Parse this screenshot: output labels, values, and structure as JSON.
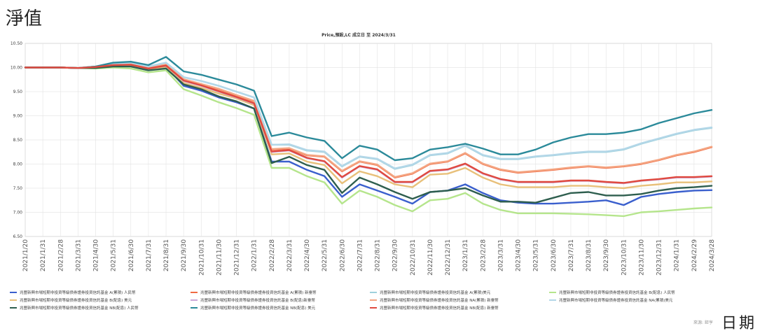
{
  "page": {
    "title": "淨值",
    "x_axis_caption": "日期",
    "source_note": "來源: 鉅亨"
  },
  "chart_data": {
    "type": "line",
    "title": "Price,預設,LC 成立日 至 2024/3/31",
    "xlabel": "",
    "ylabel": "",
    "ylim": [
      6.5,
      10.5
    ],
    "yticks": [
      6.5,
      7.0,
      7.5,
      8.0,
      8.5,
      9.0,
      9.5,
      10.0,
      10.5
    ],
    "ytick_labels": [
      "6.50",
      "7.00",
      "7.50",
      "8.00",
      "8.50",
      "9.00",
      "9.50",
      "10.00",
      "10.50"
    ],
    "grid": true,
    "legend_position": "bottom",
    "categories": [
      "2021/1/20",
      "2021/1/31",
      "2021/2/28",
      "2021/3/31",
      "2021/4/30",
      "2021/5/31",
      "2021/6/30",
      "2021/7/31",
      "2021/8/31",
      "2021/9/30",
      "2021/10/31",
      "2021/11/30",
      "2021/12/31",
      "2022/1/31",
      "2022/2/28",
      "2022/3/31",
      "2022/4/30",
      "2022/5/31",
      "2022/6/30",
      "2022/7/31",
      "2022/8/31",
      "2022/9/30",
      "2022/10/31",
      "2022/11/30",
      "2022/12/31",
      "2023/1/31",
      "2023/2/28",
      "2023/3/31",
      "2023/4/30",
      "2023/5/31",
      "2023/6/30",
      "2023/7/31",
      "2023/8/31",
      "2023/9/30",
      "2023/10/31",
      "2023/11/30",
      "2023/12/31",
      "2024/1/31",
      "2024/2/29",
      "2024/3/28"
    ],
    "series": [
      {
        "name": "兆豐新興市場短期非投資等級債券證券投資信託基金 A(累積) 人民幣",
        "color": "#3a5fcd",
        "values": [
          10.0,
          10.0,
          10.0,
          9.99,
          10.0,
          10.05,
          10.05,
          9.98,
          10.02,
          9.62,
          9.52,
          9.38,
          9.28,
          9.15,
          8.05,
          8.05,
          7.88,
          7.75,
          7.32,
          7.58,
          7.45,
          7.32,
          7.18,
          7.42,
          7.45,
          7.58,
          7.4,
          7.25,
          7.2,
          7.18,
          7.18,
          7.2,
          7.22,
          7.25,
          7.15,
          7.32,
          7.38,
          7.42,
          7.45,
          7.46
        ]
      },
      {
        "name": "兆豐新興市場短期非投資等級債券證券投資信託基金 A(累積) 新臺幣",
        "color": "#f06b43",
        "values": [
          10.0,
          10.0,
          10.0,
          9.99,
          10.02,
          10.06,
          10.08,
          10.0,
          10.06,
          9.75,
          9.65,
          9.55,
          9.42,
          9.3,
          8.3,
          8.32,
          8.18,
          8.15,
          7.85,
          8.05,
          7.98,
          7.72,
          7.8,
          8.0,
          8.05,
          8.22,
          8.0,
          7.88,
          7.82,
          7.85,
          7.88,
          7.92,
          7.95,
          7.92,
          7.95,
          8.0,
          8.08,
          8.18,
          8.25,
          8.35
        ]
      },
      {
        "name": "兆豐新興市場短期非投資等級債券證券投資信託基金 A(累積)美元",
        "color": "#9fd1dc",
        "values": [
          10.0,
          10.0,
          10.0,
          9.99,
          10.02,
          10.07,
          10.1,
          10.02,
          10.1,
          9.8,
          9.72,
          9.62,
          9.5,
          9.38,
          8.4,
          8.4,
          8.28,
          8.25,
          7.95,
          8.15,
          8.1,
          7.9,
          7.98,
          8.18,
          8.22,
          8.38,
          8.18,
          8.1,
          8.1,
          8.15,
          8.18,
          8.22,
          8.25,
          8.25,
          8.3,
          8.42,
          8.52,
          8.62,
          8.7,
          8.75
        ]
      },
      {
        "name": "兆豐新興市場短期非投資等級債券證券投資信託基金 B(配息) 人民幣",
        "color": "#b5e58c",
        "values": [
          10.0,
          10.0,
          10.0,
          9.99,
          9.98,
          10.0,
          9.98,
          9.9,
          9.94,
          9.55,
          9.42,
          9.28,
          9.16,
          9.02,
          7.92,
          7.92,
          7.75,
          7.62,
          7.18,
          7.45,
          7.32,
          7.15,
          7.02,
          7.25,
          7.28,
          7.4,
          7.18,
          7.05,
          6.98,
          6.98,
          6.98,
          6.97,
          6.96,
          6.94,
          6.92,
          7.0,
          7.02,
          7.05,
          7.08,
          7.1
        ]
      },
      {
        "name": "兆豐新興市場短期非投資等級債券證券投資信託基金 B(配息) 美元",
        "color": "#e8c07a",
        "values": [
          10.0,
          10.0,
          10.0,
          9.99,
          10.0,
          10.03,
          10.04,
          9.96,
          10.0,
          9.68,
          9.58,
          9.46,
          9.36,
          9.22,
          8.2,
          8.22,
          8.05,
          7.98,
          7.6,
          7.85,
          7.75,
          7.58,
          7.52,
          7.78,
          7.8,
          7.92,
          7.72,
          7.58,
          7.52,
          7.52,
          7.52,
          7.55,
          7.55,
          7.52,
          7.5,
          7.55,
          7.58,
          7.62,
          7.62,
          7.64
        ]
      },
      {
        "name": "兆豐新興市場短期非投資等級債券證券投資信託基金 B(配息)新臺幣",
        "color": "#cba7d8",
        "values": [
          10.0,
          10.0,
          10.0,
          9.99,
          10.01,
          10.05,
          10.06,
          9.98,
          10.04,
          9.72,
          9.62,
          9.5,
          9.38,
          9.25,
          8.25,
          8.28,
          8.12,
          8.05,
          7.72,
          7.95,
          7.88,
          7.62,
          7.62,
          7.85,
          7.88,
          8.0,
          7.8,
          7.68,
          7.62,
          7.62,
          7.62,
          7.65,
          7.65,
          7.62,
          7.6,
          7.65,
          7.68,
          7.72,
          7.72,
          7.74
        ]
      },
      {
        "name": "兆豐新興市場短期非投資等級債券證券投資信託基金 NA(累積) 新臺幣",
        "color": "#f4a582",
        "values": [
          10.0,
          10.0,
          10.0,
          9.99,
          10.02,
          10.06,
          10.08,
          10.0,
          10.06,
          9.76,
          9.66,
          9.56,
          9.43,
          9.31,
          8.31,
          8.33,
          8.19,
          8.16,
          7.86,
          8.06,
          7.99,
          7.73,
          7.81,
          8.01,
          8.06,
          8.23,
          8.01,
          7.89,
          7.83,
          7.86,
          7.89,
          7.93,
          7.96,
          7.93,
          7.96,
          8.01,
          8.09,
          8.19,
          8.26,
          8.36
        ]
      },
      {
        "name": "兆豐新興市場短期非投資等級債券證券投資信託基金 NA(累積)美元",
        "color": "#b3d7e8",
        "values": [
          10.0,
          10.0,
          10.0,
          9.99,
          10.02,
          10.07,
          10.1,
          10.02,
          10.1,
          9.8,
          9.72,
          9.62,
          9.5,
          9.38,
          8.4,
          8.41,
          8.29,
          8.26,
          7.96,
          8.16,
          8.11,
          7.91,
          7.99,
          8.19,
          8.23,
          8.39,
          8.19,
          8.11,
          8.11,
          8.16,
          8.19,
          8.23,
          8.26,
          8.26,
          8.31,
          8.43,
          8.53,
          8.63,
          8.71,
          8.76
        ]
      },
      {
        "name": "兆豐新興市場短期非投資等級債券證券投資信託基金 NB(配息) 人民幣",
        "color": "#2e5e4e",
        "values": [
          10.0,
          10.0,
          10.0,
          9.99,
          9.99,
          10.02,
          10.02,
          9.94,
          9.98,
          9.65,
          9.55,
          9.4,
          9.3,
          9.15,
          8.02,
          8.15,
          7.98,
          7.88,
          7.4,
          7.72,
          7.58,
          7.42,
          7.28,
          7.42,
          7.45,
          7.5,
          7.35,
          7.22,
          7.22,
          7.2,
          7.3,
          7.4,
          7.42,
          7.35,
          7.35,
          7.38,
          7.45,
          7.5,
          7.52,
          7.55
        ]
      },
      {
        "name": "兆豐新興市場短期非投資等級債券證券投資信託基金 NB(配息) 美元",
        "color": "#2b8a9a",
        "values": [
          10.0,
          10.0,
          10.0,
          9.99,
          10.02,
          10.1,
          10.12,
          10.05,
          10.22,
          9.92,
          9.85,
          9.75,
          9.65,
          9.52,
          8.58,
          8.65,
          8.55,
          8.48,
          8.12,
          8.38,
          8.3,
          8.08,
          8.12,
          8.3,
          8.35,
          8.42,
          8.32,
          8.2,
          8.2,
          8.3,
          8.45,
          8.55,
          8.62,
          8.62,
          8.65,
          8.72,
          8.85,
          8.95,
          9.05,
          9.12
        ]
      },
      {
        "name": "兆豐新興市場短期非投資等級債券證券投資信託基金 NB(配息) 新臺幣",
        "color": "#e04a3f",
        "values": [
          10.0,
          10.0,
          10.0,
          9.99,
          10.01,
          10.05,
          10.06,
          9.98,
          10.04,
          9.73,
          9.63,
          9.51,
          9.39,
          9.26,
          8.26,
          8.29,
          8.13,
          8.06,
          7.73,
          7.96,
          7.89,
          7.63,
          7.63,
          7.86,
          7.89,
          8.01,
          7.81,
          7.69,
          7.63,
          7.63,
          7.63,
          7.66,
          7.66,
          7.63,
          7.61,
          7.66,
          7.69,
          7.73,
          7.73,
          7.75
        ]
      }
    ]
  }
}
